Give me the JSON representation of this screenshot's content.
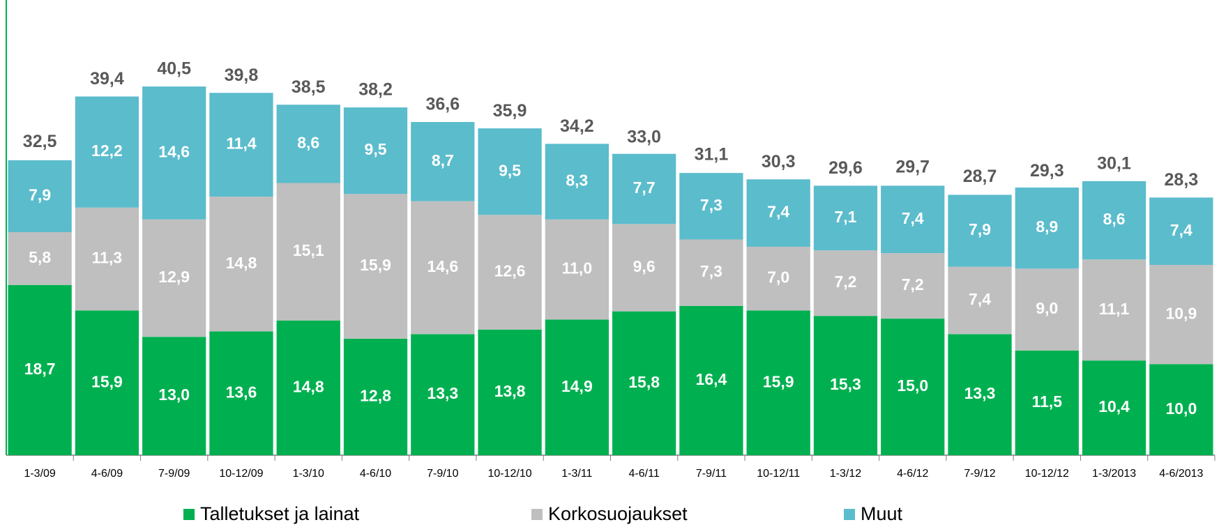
{
  "chart_data": {
    "type": "stacked_bar",
    "categories": [
      "1-3/09",
      "4-6/09",
      "7-9/09",
      "10-12/09",
      "1-3/10",
      "4-6/10",
      "7-9/10",
      "10-12/10",
      "1-3/11",
      "4-6/11",
      "7-9/11",
      "10-12/11",
      "1-3/12",
      "4-6/12",
      "7-9/12",
      "10-12/12",
      "1-3/2013",
      "4-6/2013"
    ],
    "series": [
      {
        "name": "Talletukset ja lainat",
        "color": "#00b050",
        "values": [
          18.7,
          15.9,
          13.0,
          13.6,
          14.8,
          12.8,
          13.3,
          13.8,
          14.9,
          15.8,
          16.4,
          15.9,
          15.3,
          15.0,
          13.3,
          11.5,
          10.4,
          10.0
        ],
        "value_labels": [
          "18,7",
          "15,9",
          "13,0",
          "13,6",
          "14,8",
          "12,8",
          "13,3",
          "13,8",
          "14,9",
          "15,8",
          "16,4",
          "15,9",
          "15,3",
          "15,0",
          "13,3",
          "11,5",
          "10,4",
          "10,0"
        ]
      },
      {
        "name": "Korkosuojaukset",
        "color": "#bfbfbf",
        "values": [
          5.8,
          11.3,
          12.9,
          14.8,
          15.1,
          15.9,
          14.6,
          12.6,
          11.0,
          9.6,
          7.3,
          7.0,
          7.2,
          7.2,
          7.4,
          9.0,
          11.1,
          10.9
        ],
        "value_labels": [
          "5,8",
          "11,3",
          "12,9",
          "14,8",
          "15,1",
          "15,9",
          "14,6",
          "12,6",
          "11,0",
          "9,6",
          "7,3",
          "7,0",
          "7,2",
          "7,2",
          "7,4",
          "9,0",
          "11,1",
          "10,9"
        ]
      },
      {
        "name": "Muut",
        "color": "#5bbccc",
        "values": [
          7.9,
          12.2,
          14.6,
          11.4,
          8.6,
          9.5,
          8.7,
          9.5,
          8.3,
          7.7,
          7.3,
          7.4,
          7.1,
          7.4,
          7.9,
          8.9,
          8.6,
          7.4
        ],
        "value_labels": [
          "7,9",
          "12,2",
          "14,6",
          "11,4",
          "8,6",
          "9,5",
          "8,7",
          "9,5",
          "8,3",
          "7,7",
          "7,3",
          "7,4",
          "7,1",
          "7,4",
          "7,9",
          "8,9",
          "8,6",
          "7,4"
        ]
      }
    ],
    "totals": [
      32.5,
      39.4,
      40.5,
      39.8,
      38.5,
      38.2,
      36.6,
      35.9,
      34.2,
      33.0,
      31.1,
      30.3,
      29.6,
      29.7,
      28.7,
      29.3,
      30.1,
      28.3
    ],
    "totals_labels": [
      "32,5",
      "39,4",
      "40,5",
      "39,8",
      "38,5",
      "38,2",
      "36,6",
      "35,9",
      "34,2",
      "33,0",
      "31,1",
      "30,3",
      "29,6",
      "29,7",
      "28,7",
      "29,3",
      "30,1",
      "28,3"
    ],
    "ylim": [
      0,
      50
    ],
    "legend": "bottom"
  }
}
